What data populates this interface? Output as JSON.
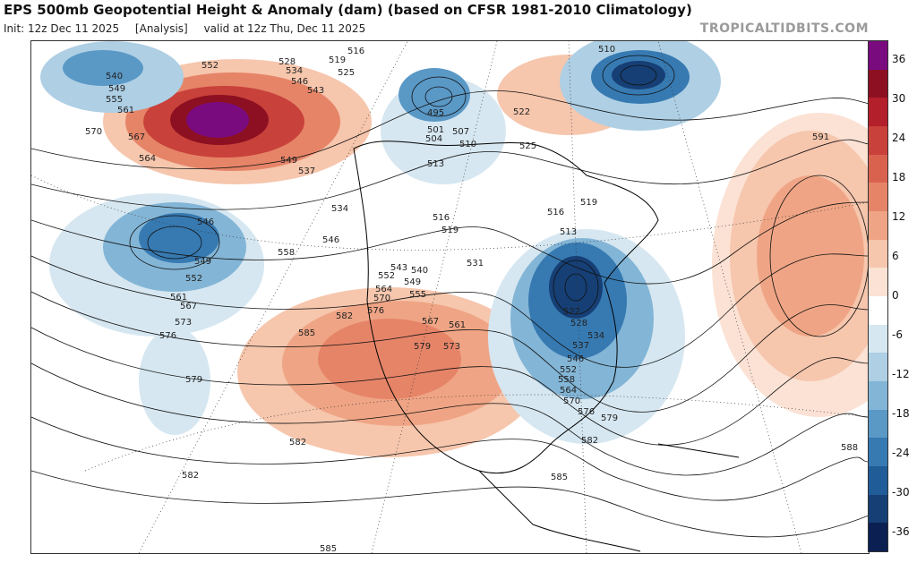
{
  "header": {
    "title": "EPS 500mb Geopotential Height & Anomaly (dam) (based on CFSR 1981-2010 Climatology)",
    "init": "Init: 12z Dec 11 2025",
    "analysis": "[Analysis]",
    "valid": "valid at 12z Thu, Dec 11 2025",
    "brand": "TROPICALTIDBITS.COM"
  },
  "colorbar": {
    "ticks": [
      "36",
      "30",
      "24",
      "18",
      "12",
      "6",
      "0",
      "-6",
      "-12",
      "-18",
      "-24",
      "-30",
      "-36"
    ],
    "colors": [
      "#7a0b7f",
      "#8c1021",
      "#b31f2a",
      "#c8413a",
      "#d9624f",
      "#e68468",
      "#efa585",
      "#f6c6ad",
      "#fbe2d4",
      "#ffffff",
      "#d6e7f1",
      "#aecfe4",
      "#83b5d6",
      "#5a98c6",
      "#377ab2",
      "#1f5c98",
      "#163f75",
      "#0b1f52"
    ],
    "mid_label": "0"
  },
  "contour_labels": [
    "516",
    "519",
    "525",
    "528",
    "534",
    "540",
    "543",
    "546",
    "549",
    "552",
    "555",
    "558",
    "561",
    "564",
    "567",
    "570",
    "573",
    "576",
    "579",
    "582",
    "585",
    "588",
    "591",
    "495",
    "501",
    "504",
    "507",
    "510",
    "513",
    "522",
    "531",
    "537"
  ],
  "map_labels": [
    {
      "t": "540"
    },
    {
      "t": "549"
    },
    {
      "t": "555"
    },
    {
      "t": "561"
    },
    {
      "t": "570"
    },
    {
      "t": "567"
    },
    {
      "t": "564"
    },
    {
      "t": "552"
    },
    {
      "t": "528"
    },
    {
      "t": "534"
    },
    {
      "t": "546"
    },
    {
      "t": "516"
    },
    {
      "t": "519"
    },
    {
      "t": "525"
    },
    {
      "t": "543"
    },
    {
      "t": "549"
    },
    {
      "t": "537"
    },
    {
      "t": "534"
    },
    {
      "t": "546"
    },
    {
      "t": "546"
    },
    {
      "t": "549"
    },
    {
      "t": "552"
    },
    {
      "t": "561"
    },
    {
      "t": "567"
    },
    {
      "t": "573"
    },
    {
      "t": "576"
    },
    {
      "t": "579"
    },
    {
      "t": "558"
    },
    {
      "t": "543"
    },
    {
      "t": "540"
    },
    {
      "t": "552"
    },
    {
      "t": "549"
    },
    {
      "t": "564"
    },
    {
      "t": "555"
    },
    {
      "t": "570"
    },
    {
      "t": "576"
    },
    {
      "t": "567"
    },
    {
      "t": "561"
    },
    {
      "t": "582"
    },
    {
      "t": "585"
    },
    {
      "t": "579"
    },
    {
      "t": "573"
    },
    {
      "t": "582"
    },
    {
      "t": "582"
    },
    {
      "t": "585"
    },
    {
      "t": "585"
    },
    {
      "t": "495"
    },
    {
      "t": "501"
    },
    {
      "t": "504"
    },
    {
      "t": "507"
    },
    {
      "t": "510"
    },
    {
      "t": "513"
    },
    {
      "t": "516"
    },
    {
      "t": "519"
    },
    {
      "t": "522"
    },
    {
      "t": "525"
    },
    {
      "t": "531"
    },
    {
      "t": "510"
    },
    {
      "t": "519"
    },
    {
      "t": "516"
    },
    {
      "t": "513"
    },
    {
      "t": "522"
    },
    {
      "t": "528"
    },
    {
      "t": "534"
    },
    {
      "t": "537"
    },
    {
      "t": "546"
    },
    {
      "t": "552"
    },
    {
      "t": "558"
    },
    {
      "t": "564"
    },
    {
      "t": "570"
    },
    {
      "t": "576"
    },
    {
      "t": "579"
    },
    {
      "t": "582"
    },
    {
      "t": "591"
    },
    {
      "t": "588"
    }
  ]
}
